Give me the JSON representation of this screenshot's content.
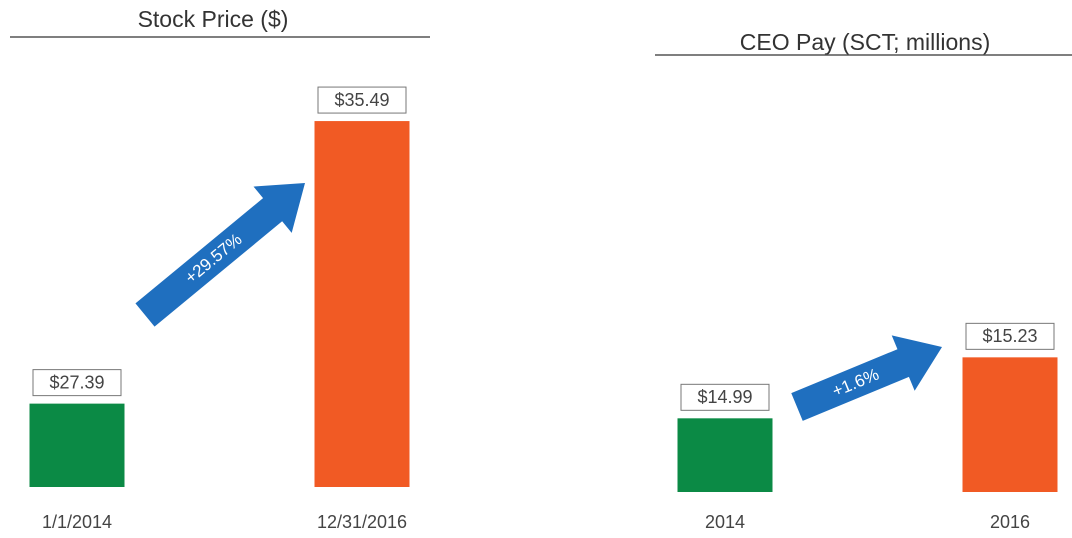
{
  "chart_data": [
    {
      "type": "bar",
      "title": "Stock Price ($)",
      "categories": [
        "1/1/2014",
        "12/31/2016"
      ],
      "values": [
        27.39,
        35.49
      ],
      "value_labels": [
        "$27.39",
        "$35.49"
      ],
      "colors": [
        "#0b8a45",
        "#f15a24"
      ],
      "annotation": "+29.57%",
      "annotation_color": "#1f6fbf",
      "ylim": [
        25,
        37.9
      ]
    },
    {
      "type": "bar",
      "title": "CEO Pay (SCT; millions)",
      "categories": [
        "2014",
        "2016"
      ],
      "values": [
        14.99,
        15.23
      ],
      "value_labels": [
        "$14.99",
        "$15.23"
      ],
      "colors": [
        "#0b8a45",
        "#f15a24"
      ],
      "annotation": "+1.6%",
      "annotation_color": "#1f6fbf",
      "ylim": [
        14.7,
        16.42
      ]
    }
  ]
}
